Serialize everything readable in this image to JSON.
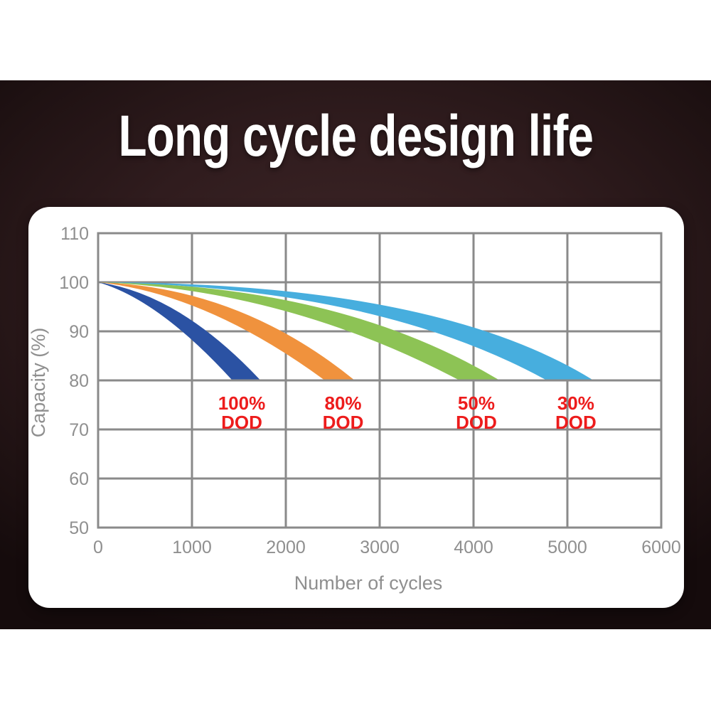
{
  "title": "Long cycle design life",
  "colors": {
    "background_dark": "#2e1a1c",
    "card": "#ffffff",
    "grid": "#8a8a8a",
    "axis_text": "#8f8f8f",
    "annotation_red": "#ed1c1c"
  },
  "chart_data": {
    "type": "area",
    "title": "",
    "xlabel": "Number of cycles",
    "ylabel": "Capacity (%)",
    "xlim": [
      0,
      6000
    ],
    "ylim": [
      50,
      110
    ],
    "x_ticks": [
      0,
      1000,
      2000,
      3000,
      4000,
      5000,
      6000
    ],
    "y_ticks": [
      110,
      100,
      90,
      80,
      70,
      60,
      50
    ],
    "grid": true,
    "series": [
      {
        "name": "100% DOD",
        "color": "#2b52a3",
        "capacity_start": 100,
        "capacity_end": 80,
        "band_start": [
          0,
          100
        ],
        "lower_edge": {
          "end_cycles": 1420,
          "ctrl": [
            640,
            96.5
          ]
        },
        "upper_edge": {
          "end_cycles": 1720,
          "ctrl": [
            860,
            97.7
          ]
        },
        "cycles_to_80_percent": 1700
      },
      {
        "name": "80% DOD",
        "color": "#f0923d",
        "capacity_start": 100,
        "capacity_end": 80,
        "band_start": [
          0,
          100
        ],
        "lower_edge": {
          "end_cycles": 2400,
          "ctrl": [
            1150,
            97.7
          ]
        },
        "upper_edge": {
          "end_cycles": 2720,
          "ctrl": [
            1500,
            99.1
          ]
        },
        "cycles_to_80_percent": 2700
      },
      {
        "name": "50% DOD",
        "color": "#8dc355",
        "capacity_start": 100,
        "capacity_end": 80,
        "band_start": [
          0,
          100
        ],
        "lower_edge": {
          "end_cycles": 3830,
          "ctrl": [
            1990,
            98.6
          ]
        },
        "upper_edge": {
          "end_cycles": 4260,
          "ctrl": [
            2550,
            99.7
          ]
        },
        "cycles_to_80_percent": 4250
      },
      {
        "name": "30% DOD",
        "color": "#47aede",
        "capacity_start": 100,
        "capacity_end": 80,
        "band_start": [
          0,
          100
        ],
        "lower_edge": {
          "end_cycles": 4760,
          "ctrl": [
            2950,
            99.1
          ]
        },
        "upper_edge": {
          "end_cycles": 5260,
          "ctrl": [
            3580,
            100
          ]
        },
        "cycles_to_80_percent": 5250
      }
    ],
    "annotations": [
      {
        "lines": [
          "100%",
          "DOD"
        ],
        "x_cycles": 1530,
        "below_capacity": 80,
        "color": "#ed1c1c"
      },
      {
        "lines": [
          "80%",
          "DOD"
        ],
        "x_cycles": 2610,
        "below_capacity": 80,
        "color": "#ed1c1c"
      },
      {
        "lines": [
          "50%",
          "DOD"
        ],
        "x_cycles": 4030,
        "below_capacity": 80,
        "color": "#ed1c1c"
      },
      {
        "lines": [
          "30%",
          "DOD"
        ],
        "x_cycles": 5090,
        "below_capacity": 80,
        "color": "#ed1c1c"
      }
    ],
    "legend_position": "none"
  }
}
